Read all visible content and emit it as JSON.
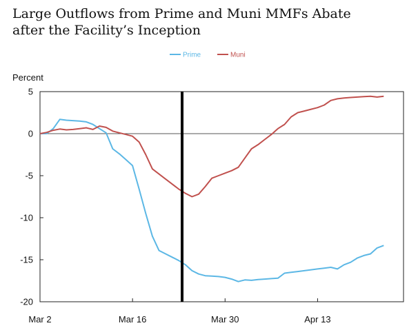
{
  "chart_data": {
    "type": "line",
    "title_lines": [
      "Large Outflows from Prime and Muni MMFs Abate",
      "after the Facility’s Inception"
    ],
    "ylabel": "Percent",
    "xlabel": "",
    "ylim": [
      -20,
      5
    ],
    "yticks": [
      5,
      0,
      -5,
      -10,
      -15,
      -20
    ],
    "xlim": [
      0,
      55
    ],
    "xticks": [
      {
        "day": 0,
        "label": "Mar 2"
      },
      {
        "day": 14,
        "label": "Mar 16"
      },
      {
        "day": 28,
        "label": "Mar 30"
      },
      {
        "day": 42,
        "label": "Apr 13"
      }
    ],
    "event_line_day": 21.5,
    "zero_line": true,
    "legend_position": "top-center",
    "series": [
      {
        "name": "Prime",
        "color": "#5bb7e5",
        "x": [
          0,
          1,
          2,
          3,
          4,
          5,
          6,
          7,
          8,
          9,
          10,
          11,
          12,
          13,
          14,
          15,
          16,
          17,
          18,
          19,
          20,
          21,
          22,
          23,
          24,
          25,
          26,
          27,
          28,
          29,
          30,
          31,
          32,
          33,
          34,
          35,
          36,
          37,
          38,
          39,
          40,
          41,
          42,
          43,
          44,
          45,
          46,
          47,
          48,
          49,
          50,
          51,
          52
        ],
        "values": [
          0,
          0,
          0.6,
          1.7,
          1.6,
          1.55,
          1.5,
          1.4,
          1.1,
          0.6,
          0.1,
          -1.8,
          -2.4,
          -3.1,
          -3.8,
          -6.6,
          -9.5,
          -12.2,
          -13.9,
          -14.3,
          -14.7,
          -15.1,
          -15.6,
          -16.3,
          -16.7,
          -16.9,
          -16.95,
          -17.0,
          -17.1,
          -17.3,
          -17.6,
          -17.4,
          -17.45,
          -17.35,
          -17.3,
          -17.25,
          -17.2,
          -16.6,
          -16.5,
          -16.4,
          -16.3,
          -16.2,
          -16.1,
          -16.0,
          -15.9,
          -16.1,
          -15.6,
          -15.3,
          -14.8,
          -14.5,
          -14.3,
          -13.6,
          -13.3
        ]
      },
      {
        "name": "Muni",
        "color": "#c0504d",
        "x": [
          0,
          1,
          2,
          3,
          4,
          5,
          6,
          7,
          8,
          9,
          10,
          11,
          12,
          13,
          14,
          15,
          16,
          17,
          18,
          19,
          20,
          21,
          22,
          23,
          24,
          25,
          26,
          27,
          28,
          29,
          30,
          31,
          32,
          33,
          34,
          35,
          36,
          37,
          38,
          39,
          40,
          41,
          42,
          43,
          44,
          45,
          46,
          47,
          48,
          49,
          50,
          51,
          52
        ],
        "values": [
          0,
          0.15,
          0.4,
          0.55,
          0.45,
          0.5,
          0.6,
          0.7,
          0.5,
          0.9,
          0.75,
          0.3,
          0.1,
          -0.1,
          -0.3,
          -1.0,
          -2.5,
          -4.2,
          -4.8,
          -5.4,
          -6.0,
          -6.6,
          -7.1,
          -7.5,
          -7.2,
          -6.3,
          -5.3,
          -5.0,
          -4.7,
          -4.4,
          -4.0,
          -2.9,
          -1.8,
          -1.3,
          -0.7,
          -0.1,
          0.6,
          1.1,
          2.0,
          2.5,
          2.7,
          2.9,
          3.1,
          3.4,
          3.95,
          4.15,
          4.25,
          4.3,
          4.35,
          4.4,
          4.45,
          4.35,
          4.45
        ]
      }
    ]
  }
}
